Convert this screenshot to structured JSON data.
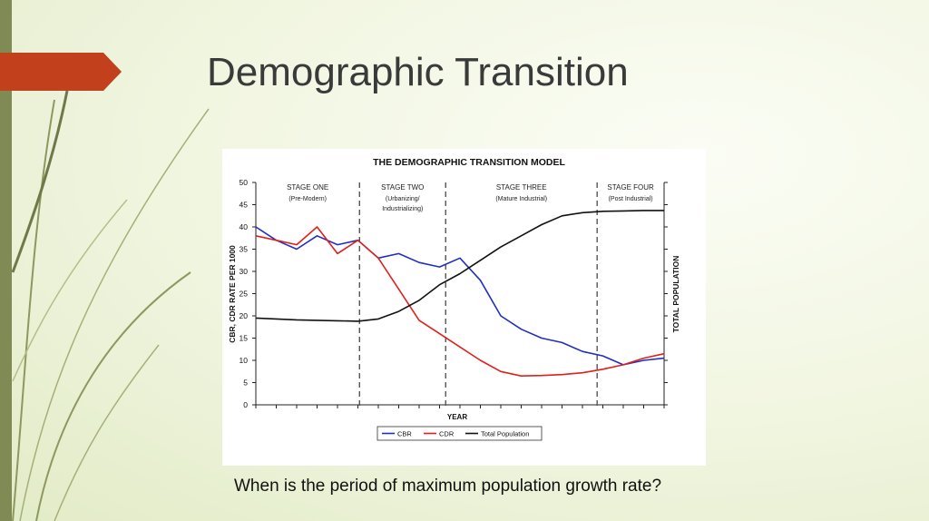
{
  "slide": {
    "title": "Demographic Transition",
    "question": "When is the period of maximum population growth rate?"
  },
  "colors": {
    "accent_tag": "#c2401c",
    "left_bar": "#7f8a55",
    "cbr": "#1f2fc4",
    "cdr": "#e0201b",
    "population": "#111111"
  },
  "chart_data": {
    "type": "line",
    "title": "THE DEMOGRAPHIC TRANSITION MODEL",
    "xlabel": "YEAR",
    "ylabel": "CBR, CDR RATE PER 1000",
    "ylabel_right": "TOTAL POPULATION",
    "ylim": [
      0,
      50
    ],
    "yticks": [
      0,
      5,
      10,
      15,
      20,
      25,
      30,
      35,
      40,
      45,
      50
    ],
    "grid": false,
    "legend_position": "bottom-center",
    "stages": [
      {
        "name": "STAGE ONE",
        "sub": [
          "(Pre-Modern)"
        ]
      },
      {
        "name": "STAGE TWO",
        "sub": [
          "(Urbanizing/",
          "Industrializing)"
        ]
      },
      {
        "name": "STAGE THREE",
        "sub": [
          "(Mature Industrial)"
        ]
      },
      {
        "name": "STAGE FOUR",
        "sub": [
          "(Post Industrial)"
        ]
      }
    ],
    "x": [
      0,
      5,
      10,
      15,
      20,
      25,
      30,
      35,
      40,
      45,
      50,
      55,
      60,
      65,
      70,
      75,
      80,
      85,
      90,
      95,
      100
    ],
    "stage_boundaries_x": [
      25.4,
      46.5,
      83.6
    ],
    "series": [
      {
        "name": "CBR",
        "values": [
          40,
          37,
          35,
          38,
          36,
          37,
          33,
          34,
          32,
          31,
          33,
          28,
          20,
          17,
          15,
          14,
          12,
          11,
          9,
          10,
          10.5
        ]
      },
      {
        "name": "CDR",
        "values": [
          38,
          37,
          36,
          40,
          34,
          37,
          33,
          26,
          19,
          16,
          13,
          10,
          7.5,
          6.5,
          6.6,
          6.8,
          7.2,
          8,
          9,
          10.5,
          11.5
        ]
      },
      {
        "name": "Total Population",
        "values": [
          19.5,
          19.3,
          19.1,
          19,
          18.9,
          18.8,
          19.3,
          21,
          23.5,
          27,
          29.5,
          32.5,
          35.5,
          38,
          40.5,
          42.5,
          43.2,
          43.5,
          43.6,
          43.7,
          43.7
        ]
      }
    ]
  }
}
